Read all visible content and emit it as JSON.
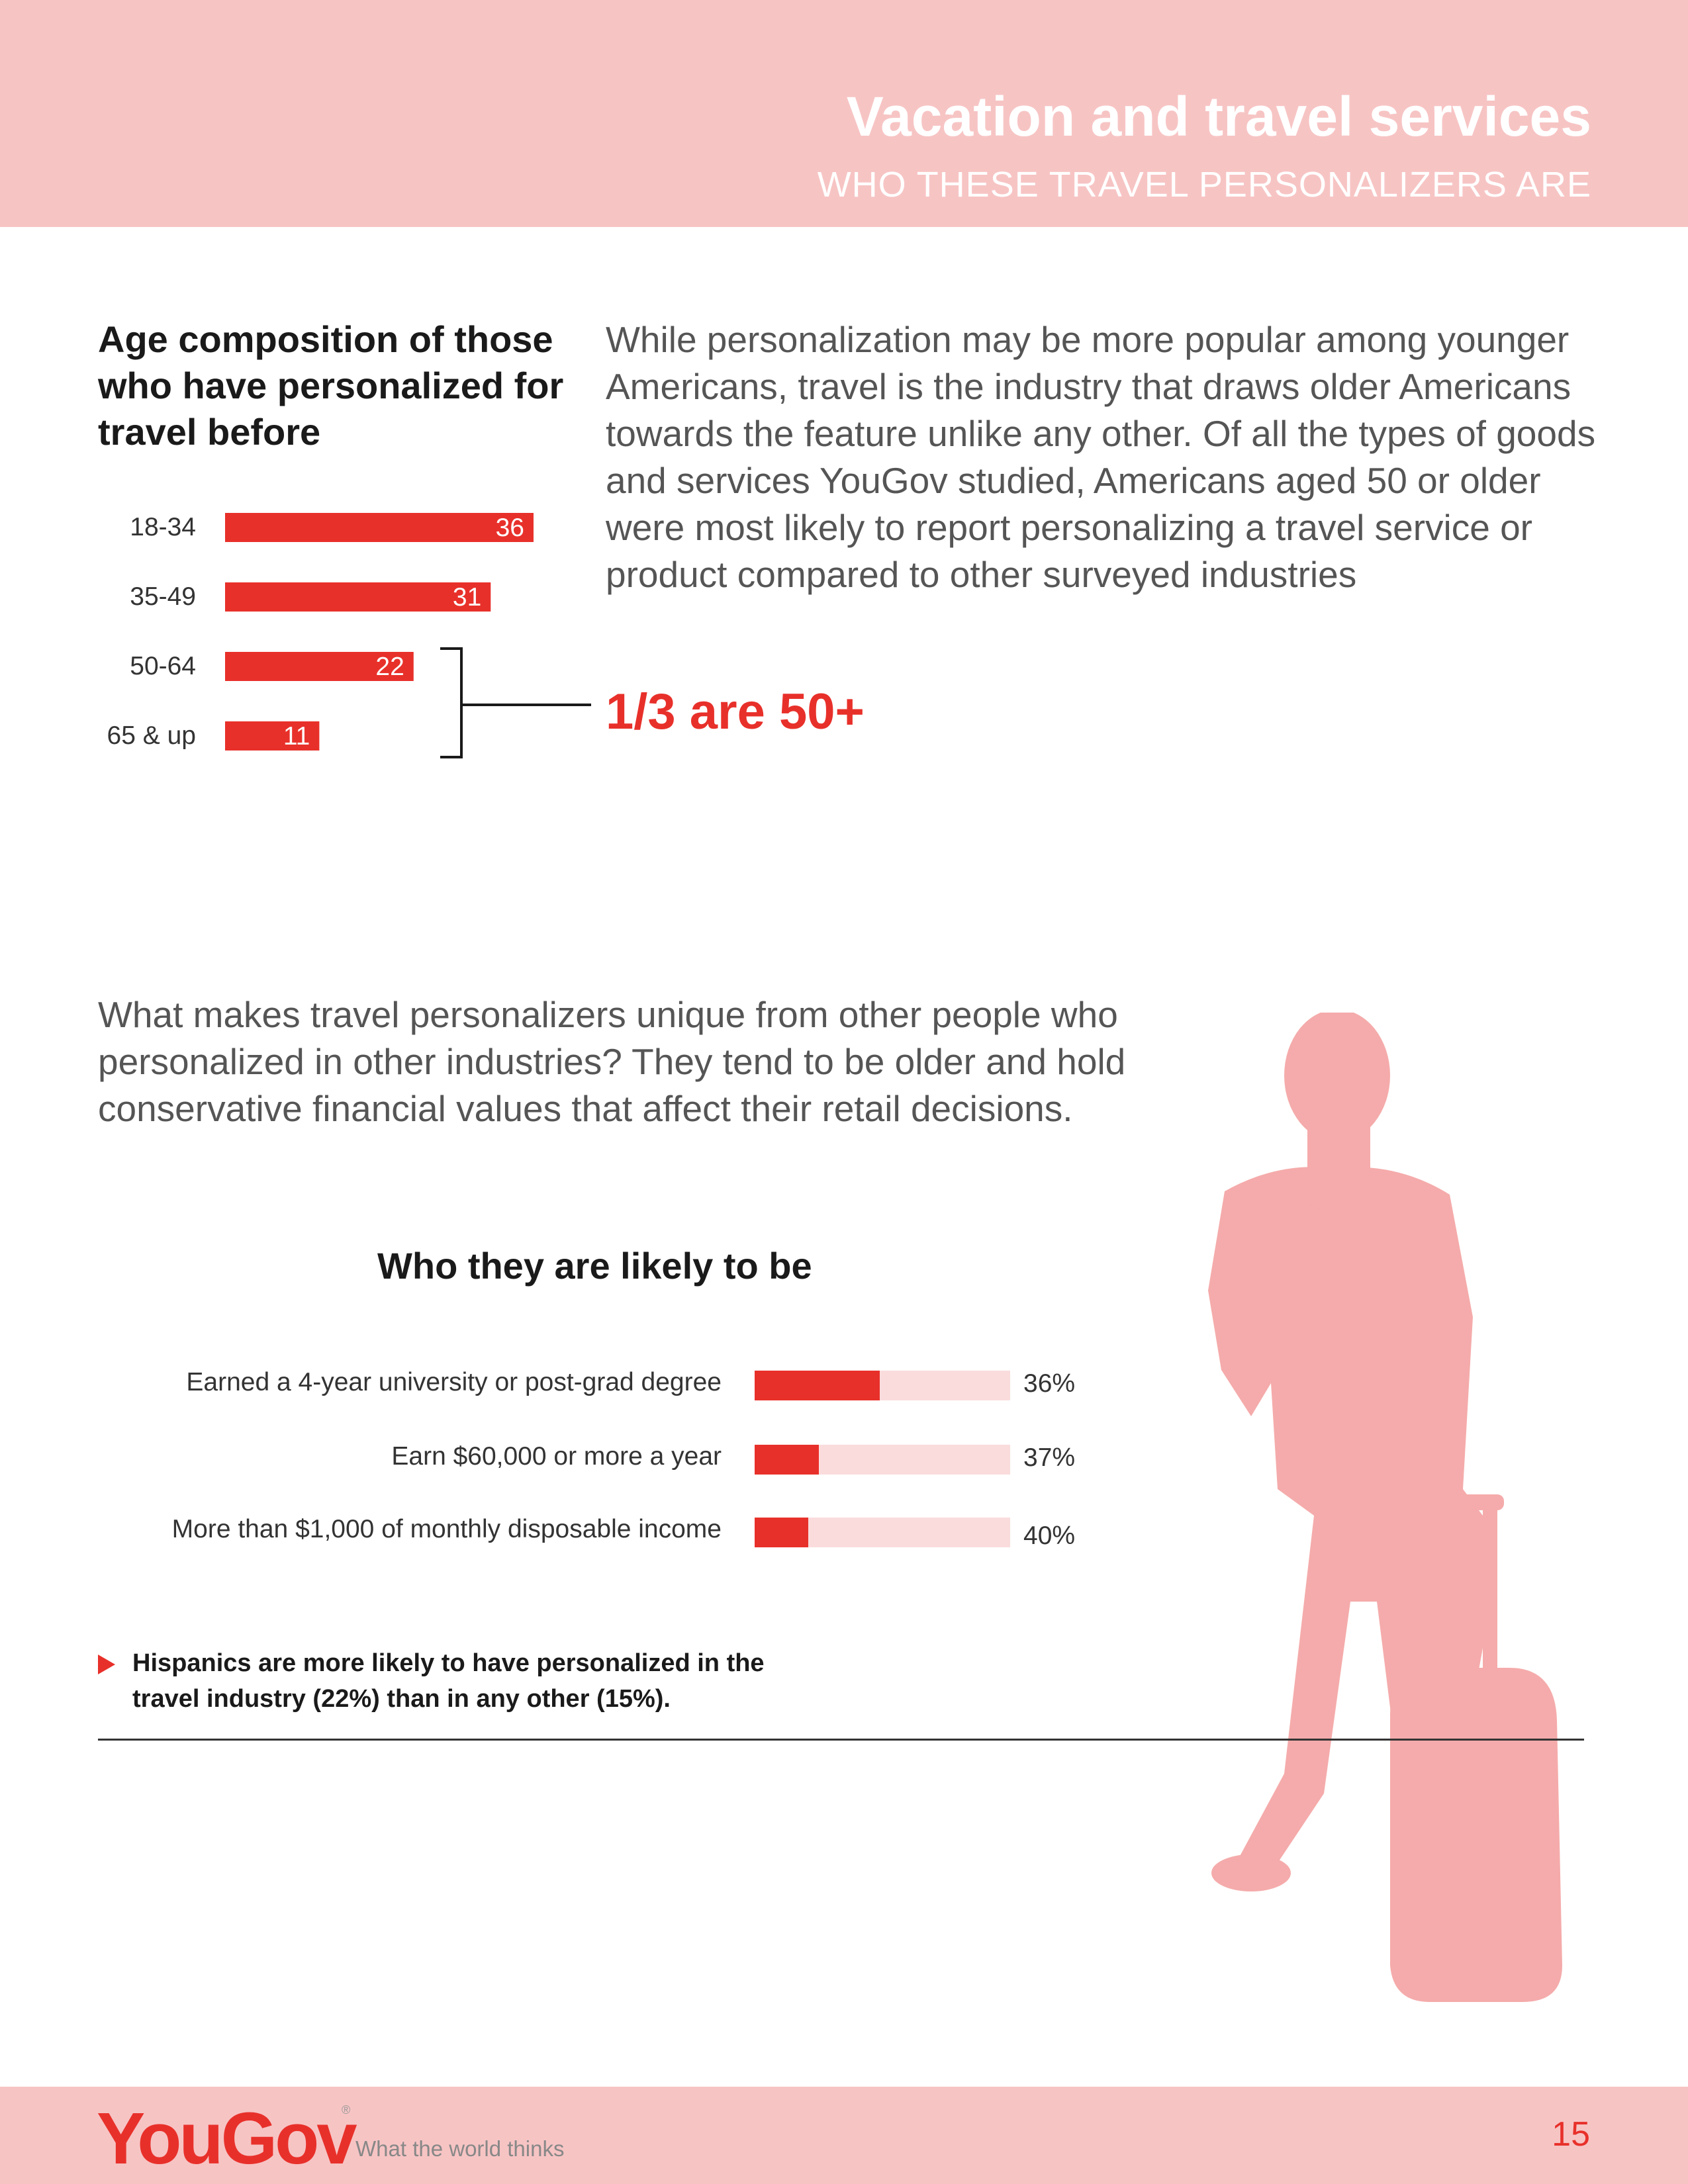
{
  "header": {
    "title": "Vacation and travel services",
    "subtitle": "WHO THESE TRAVEL PERSONALIZERS ARE"
  },
  "age_section": {
    "title": "Age composition of those who have personalized for travel before",
    "callout": "1/3 are 50+"
  },
  "intro_paragraph": "While personalization may be more popular among younger Americans, travel is the industry that draws older Americans towards the feature unlike any other. Of all the types of goods and services YouGov studied, Americans aged 50 or older were most likely to report personalizing a travel service or product compared to other surveyed industries",
  "unique_paragraph": "What makes travel personalizers unique from other people who personalized in other industries? They tend to be older and hold conservative financial values that affect their retail decisions.",
  "likely_section": {
    "title": "Who they are likely to be"
  },
  "note": "Hispanics are more likely to have personalized in the travel industry (22%) than in any other (15%).",
  "footer": {
    "logo": "YouGov",
    "registered": "®",
    "tagline": "What the world thinks",
    "page_number": "15"
  },
  "colors": {
    "accent": "#e8302a",
    "band": "#f7c4c4",
    "track": "#fadcdc",
    "silhouette": "#f5abab"
  },
  "chart_data": [
    {
      "type": "bar",
      "orientation": "horizontal",
      "title": "Age composition of those who have personalized for travel before",
      "categories": [
        "18-34",
        "35-49",
        "50-64",
        "65 & up"
      ],
      "values": [
        36,
        31,
        22,
        11
      ],
      "value_labels": [
        "36",
        "31",
        "22",
        "11"
      ],
      "xlim": [
        0,
        36
      ]
    },
    {
      "type": "bar",
      "orientation": "horizontal",
      "title": "Who they are likely to be",
      "categories": [
        "Earned a 4-year university or post-grad degree",
        "Earn $60,000 or more a year",
        "More than $1,000 of monthly disposable income"
      ],
      "values": [
        36,
        37,
        40
      ],
      "value_labels": [
        "36%",
        "37%",
        "40%"
      ],
      "bar_fill_fraction": [
        0.49,
        0.25,
        0.21
      ]
    }
  ]
}
